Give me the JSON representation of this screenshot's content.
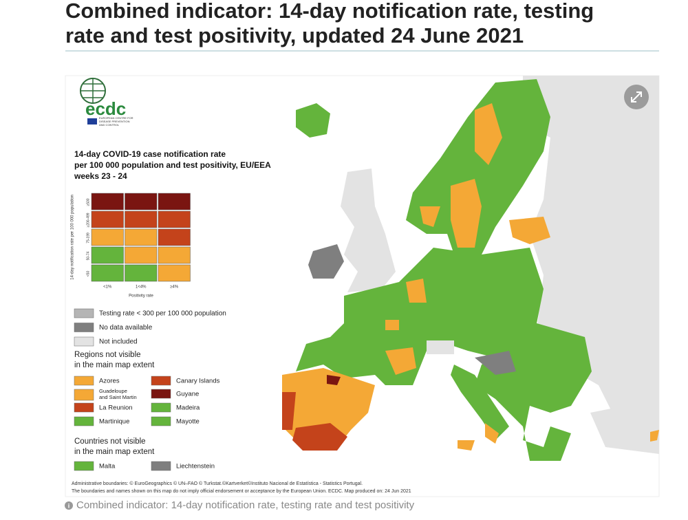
{
  "title_lines": [
    "Combined indicator: 14-day notification rate, testing",
    "rate and test positivity, updated 24 June 2021"
  ],
  "logo": {
    "name": "ecdc",
    "subtitle_lines": [
      "EUROPEAN CENTRE FOR",
      "DISEASE PREVENTION",
      "AND CONTROL"
    ]
  },
  "legend": {
    "title_lines": [
      "14-day COVID-19 case notification rate",
      "per 100 000 population and test positivity, EU/EEA",
      "weeks 23 - 24"
    ],
    "y_label": "14-day notification rate per 100 000 population",
    "rows": [
      "≥500",
      "≥200-499",
      "75-199",
      "50-74",
      "<50"
    ],
    "columns": [
      "<1%",
      "1<4%",
      "≥4%"
    ],
    "x_label": "Positivity rate",
    "matrix": [
      [
        "#7a1511",
        "#7a1511",
        "#7a1511"
      ],
      [
        "#c4431b",
        "#c4431b",
        "#c4431b"
      ],
      [
        "#f4a836",
        "#f4a836",
        "#c4431b"
      ],
      [
        "#64b43c",
        "#f4a836",
        "#f4a836"
      ],
      [
        "#64b43c",
        "#64b43c",
        "#f4a836"
      ]
    ],
    "other": [
      {
        "label": "Testing rate < 300 per 100 000 population",
        "color": "#b5b5b5"
      },
      {
        "label": "No data available",
        "color": "#7f7f7f"
      },
      {
        "label": "Not included",
        "color": "#e3e3e3"
      }
    ],
    "regions_heading_lines": [
      "Regions not visible",
      "in the main map extent"
    ],
    "regions": [
      {
        "label_lines": [
          "Azores"
        ],
        "color": "#f4a836"
      },
      {
        "label_lines": [
          "Guadeloupe",
          "and Saint Martin"
        ],
        "color": "#f4a836"
      },
      {
        "label_lines": [
          "La Reunion"
        ],
        "color": "#c4431b"
      },
      {
        "label_lines": [
          "Martinique"
        ],
        "color": "#64b43c"
      },
      {
        "label_lines": [
          "Canary Islands"
        ],
        "color": "#c4431b"
      },
      {
        "label_lines": [
          "Guyane"
        ],
        "color": "#7a1511"
      },
      {
        "label_lines": [
          "Madeira"
        ],
        "color": "#64b43c"
      },
      {
        "label_lines": [
          "Mayotte"
        ],
        "color": "#64b43c"
      }
    ],
    "countries_heading_lines": [
      "Countries not visible",
      "in the main map extent"
    ],
    "countries": [
      {
        "label": "Malta",
        "color": "#64b43c"
      },
      {
        "label": "Liechtenstein",
        "color": "#7f7f7f"
      }
    ]
  },
  "footer_lines": [
    "Administrative boundaries: © EuroGeographics © UN–FAO © Turkstat.©Kartverket©Instituto Nacional de Estatística - Statistics Portugal.",
    "The boundaries and names shown on this map do not imply official endorsement or acceptance by the European Union. ECDC. Map produced on: 24 Jun 2021"
  ],
  "caption": "Combined indicator: 14-day notification rate, testing rate and test positivity"
}
